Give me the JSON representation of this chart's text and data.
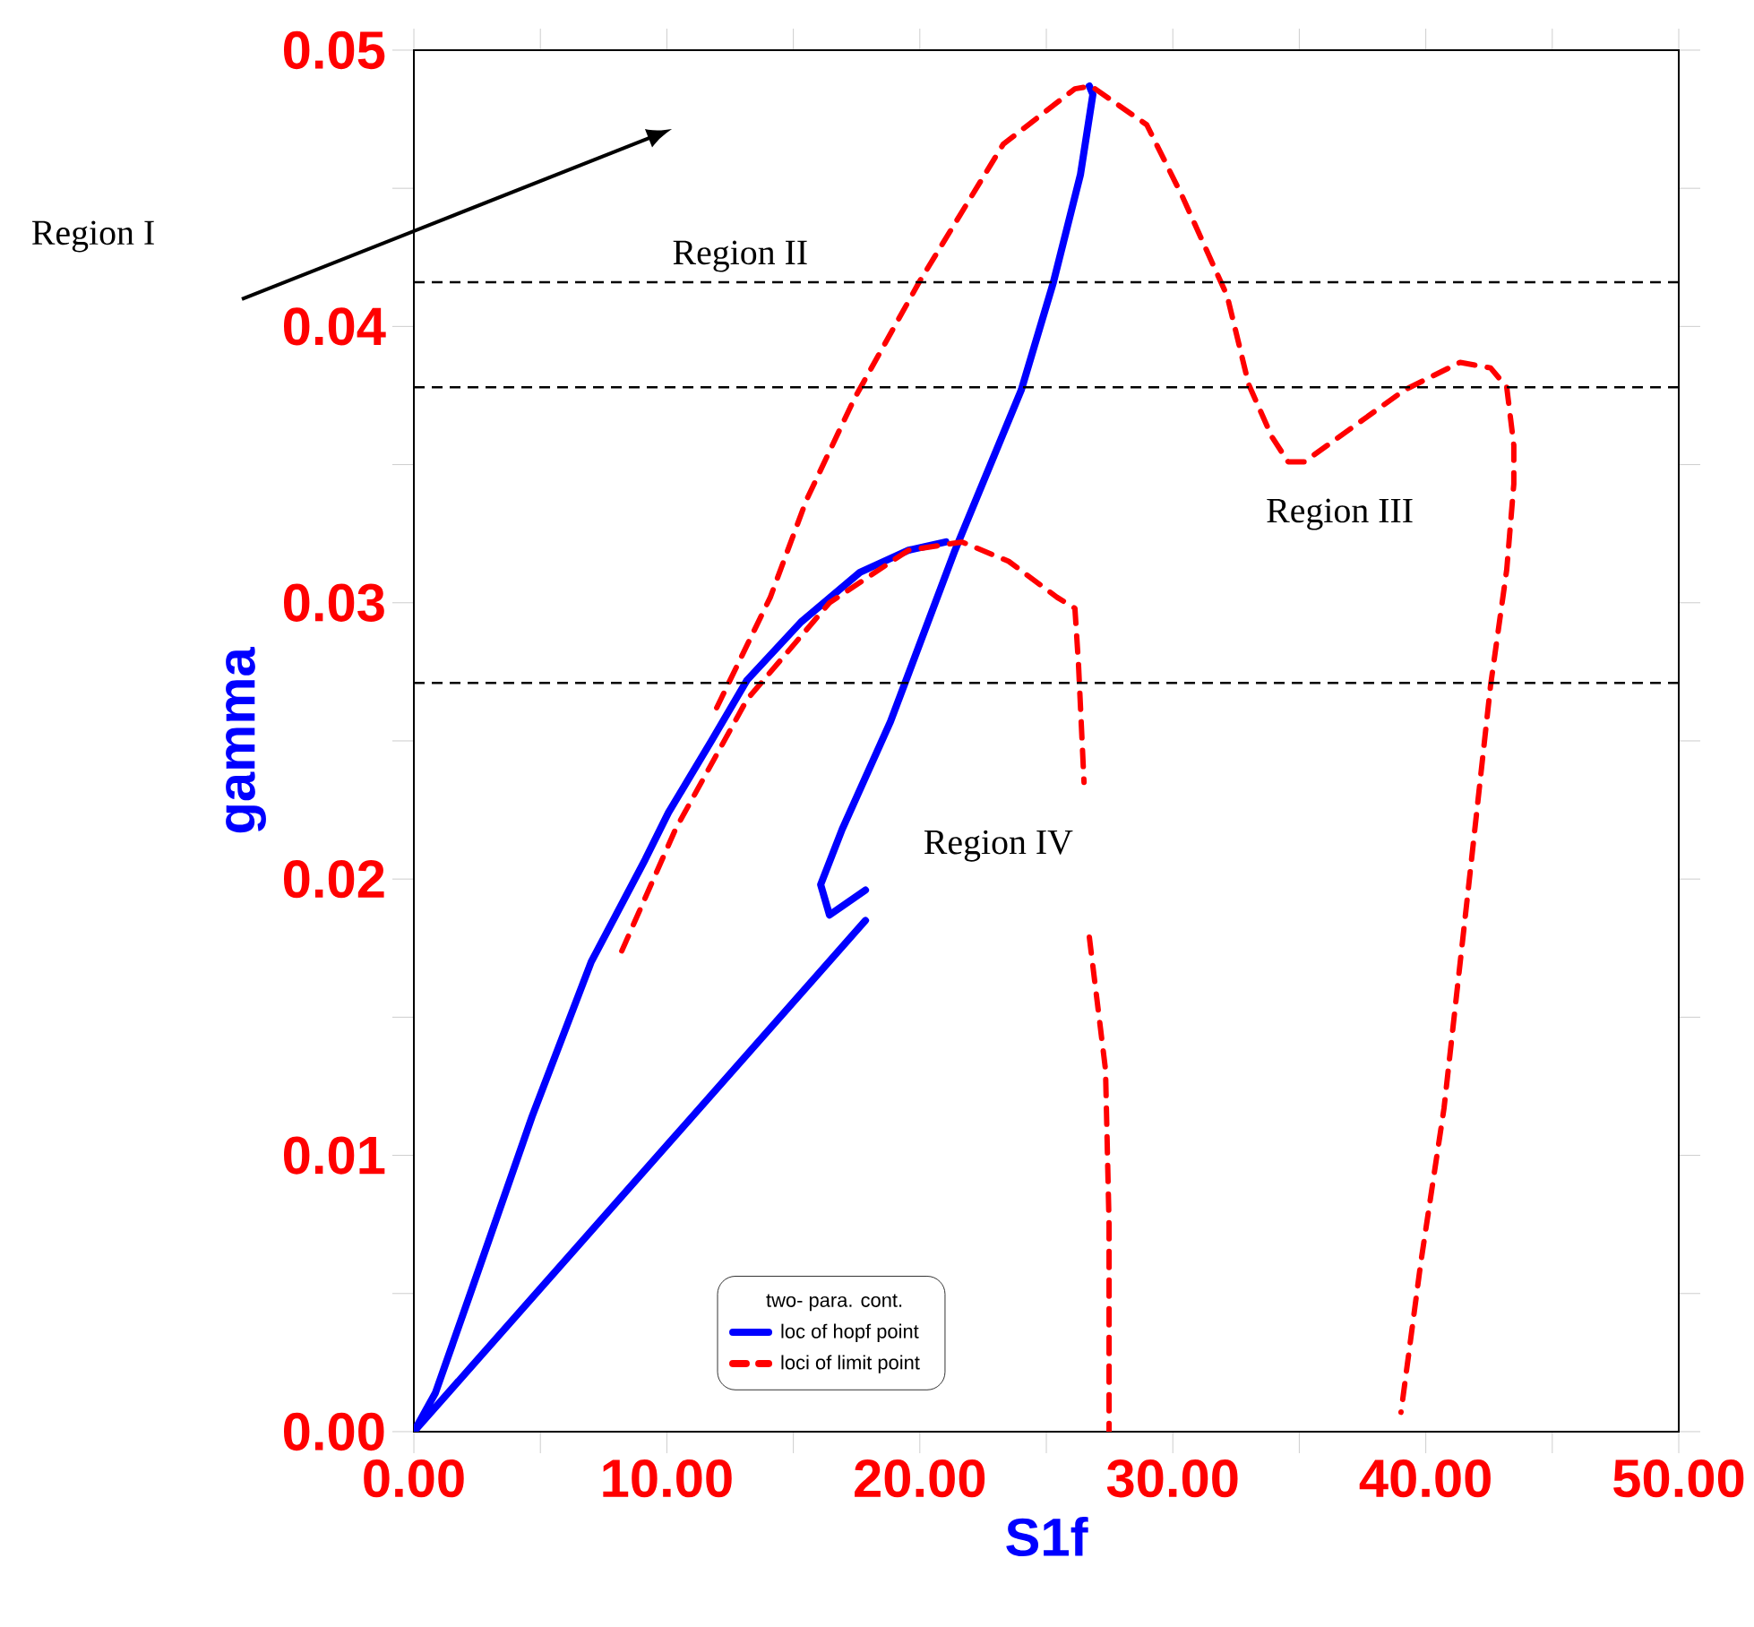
{
  "chart_data": {
    "type": "line",
    "xlabel": "S1f",
    "ylabel": "gamma",
    "legend_title": "two- para. cont.",
    "legend": "bottom",
    "grid": false,
    "marker": "none",
    "xlim": [
      0,
      50
    ],
    "ylim": [
      0,
      0.05
    ],
    "xticks": [
      {
        "value": 0,
        "label": "0.00"
      },
      {
        "value": 5,
        "label": null
      },
      {
        "value": 10,
        "label": "10.00"
      },
      {
        "value": 15,
        "label": null
      },
      {
        "value": 20,
        "label": "20.00"
      },
      {
        "value": 25,
        "label": null
      },
      {
        "value": 30,
        "label": "30.00"
      },
      {
        "value": 35,
        "label": null
      },
      {
        "value": 40,
        "label": "40.00"
      },
      {
        "value": 45,
        "label": null
      },
      {
        "value": 50,
        "label": "50.00"
      }
    ],
    "yticks": [
      {
        "value": 0,
        "label": "0.00"
      },
      {
        "value": 0.005,
        "label": null
      },
      {
        "value": 0.01,
        "label": "0.01"
      },
      {
        "value": 0.015,
        "label": null
      },
      {
        "value": 0.02,
        "label": "0.02"
      },
      {
        "value": 0.025,
        "label": null
      },
      {
        "value": 0.03,
        "label": "0.03"
      },
      {
        "value": 0.035,
        "label": null
      },
      {
        "value": 0.04,
        "label": "0.04"
      },
      {
        "value": 0.045,
        "label": null
      },
      {
        "value": 0.05,
        "label": "0.05"
      }
    ],
    "series": [
      {
        "name": "loc of hopf point",
        "color": "#0000ff",
        "line_style": "solid",
        "x": [
          0,
          0.85,
          2.27,
          4.67,
          7.01,
          9.14,
          10.06,
          11.76,
          13.17,
          15.3,
          17.63,
          19.55,
          21.03,
          null,
          0,
          17.85,
          null,
          17.85,
          16.43,
          16.08,
          16.93,
          18.84,
          21.39,
          24.01,
          25.28,
          26.35,
          26.84,
          26.7
        ],
        "values": [
          0,
          0.0014,
          0.0051,
          0.0114,
          0.017,
          0.0207,
          0.0224,
          0.025,
          0.0272,
          0.0293,
          0.0311,
          0.0319,
          0.0322,
          null,
          0,
          0.0185,
          null,
          0.0196,
          0.0187,
          0.0198,
          0.0218,
          0.0257,
          0.0319,
          0.0377,
          0.0416,
          0.0455,
          0.0484,
          0.0487
        ]
      },
      {
        "name": "loci of limit point",
        "color": "#ff0000",
        "line_style": "dashed",
        "x": [
          8.22,
          10.34,
          13.17,
          16.43,
          19.55,
          21.67,
          23.51,
          25.42,
          26.13,
          26.27,
          26.49,
          null,
          26.7,
          27.34,
          27.48,
          27.48,
          null,
          11.97,
          14.09,
          15.51,
          17.42,
          19.97,
          23.3,
          26.13,
          26.77,
          28.97,
          30.38,
          32.15,
          33.0,
          33.92,
          34.56,
          35.2,
          39.16,
          41.36,
          42.56,
          43.2,
          43.48,
          43.48,
          43.2,
          42.56,
          41.64,
          40.72,
          39.8,
          39.02
        ],
        "values": [
          0.0174,
          0.0218,
          0.0265,
          0.03,
          0.0319,
          0.0322,
          0.0315,
          0.0302,
          0.0298,
          0.0278,
          0.0235,
          null,
          0.0179,
          0.0131,
          0.0075,
          0,
          null,
          0.0262,
          0.0302,
          0.0337,
          0.0374,
          0.0416,
          0.0466,
          0.0486,
          0.0487,
          0.0473,
          0.0447,
          0.0411,
          0.0379,
          0.036,
          0.0351,
          0.0351,
          0.0377,
          0.0387,
          0.0385,
          0.0378,
          0.0357,
          0.0343,
          0.0312,
          0.027,
          0.0193,
          0.0117,
          0.0061,
          0.0007
        ]
      }
    ],
    "ref_lines": [
      {
        "axis": "y",
        "value": 0.0416,
        "color": "#000000",
        "line_style": "dashed"
      },
      {
        "axis": "y",
        "value": 0.0378,
        "color": "#000000",
        "line_style": "dashed"
      },
      {
        "axis": "y",
        "value": 0.0271,
        "color": "#000000",
        "line_style": "dashed"
      }
    ],
    "annotations": [
      "Region I",
      "Region II",
      "Region III",
      "Region IV"
    ]
  }
}
